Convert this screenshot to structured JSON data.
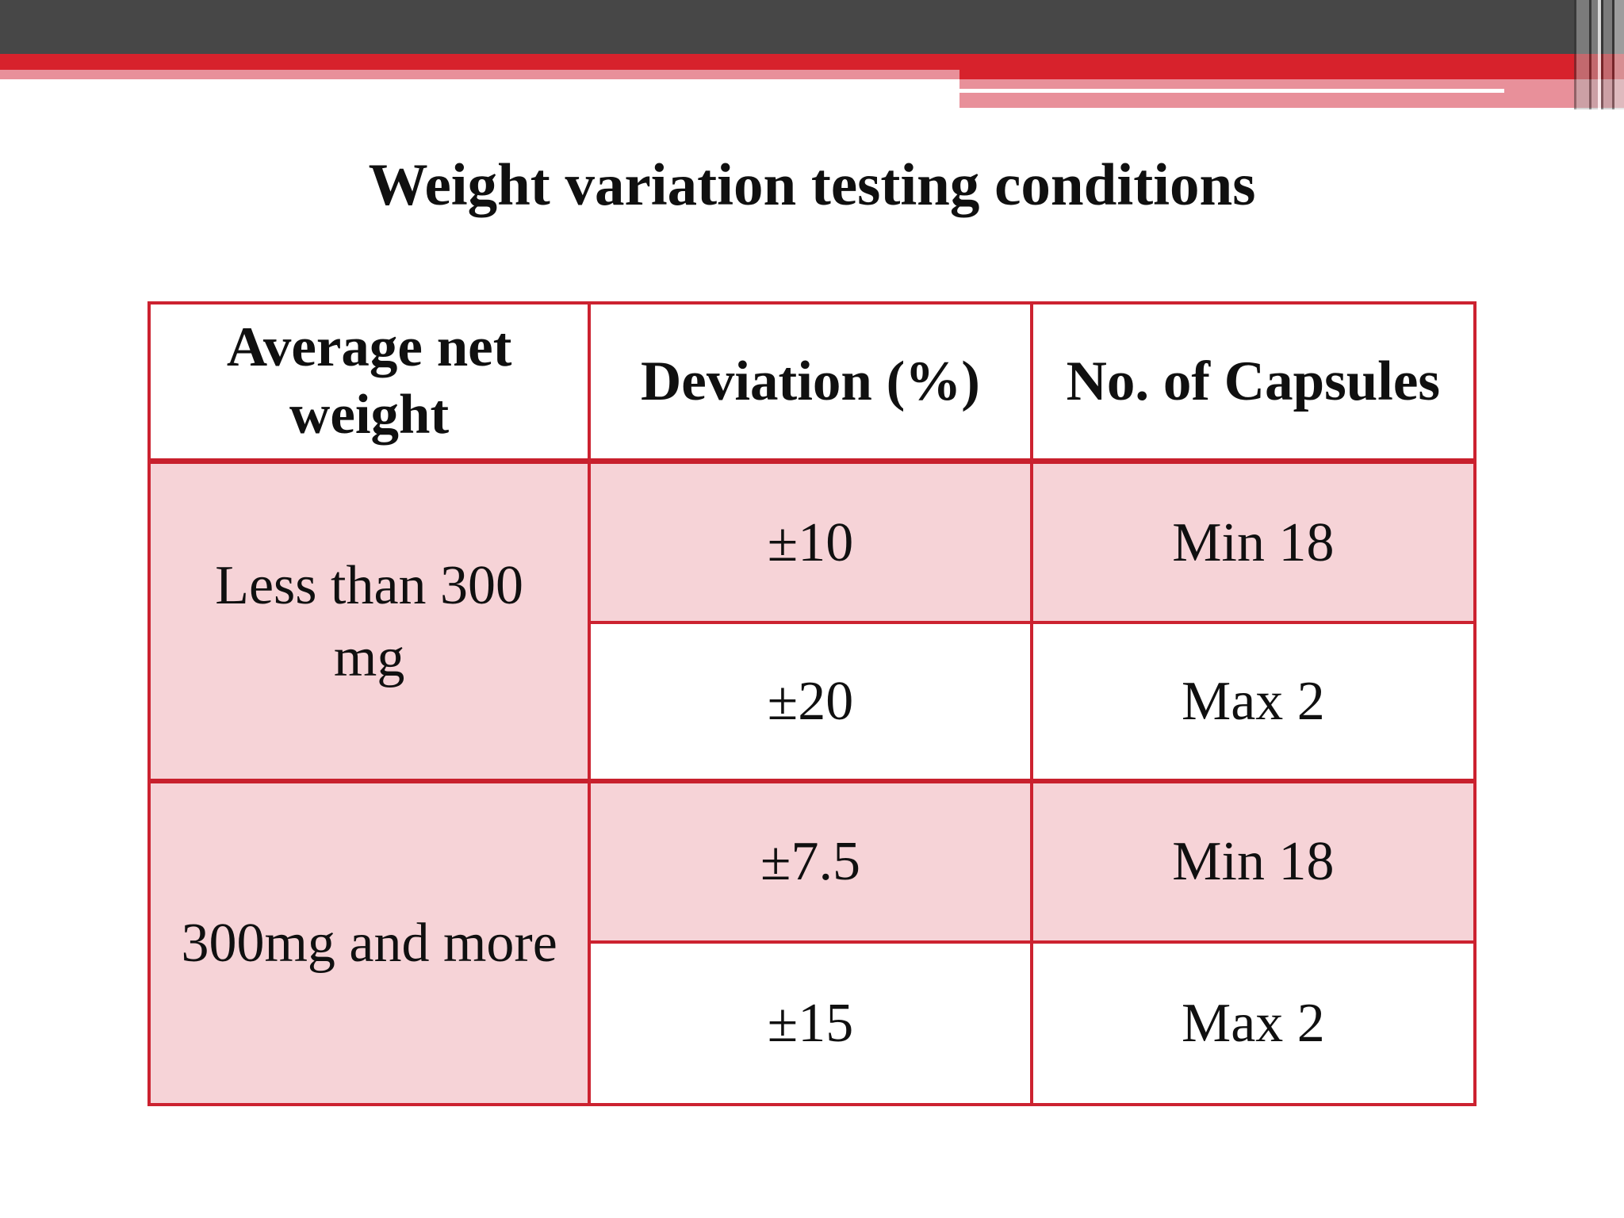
{
  "title": "Weight variation testing conditions",
  "colors": {
    "banner_dark_gray": "#474747",
    "banner_red": "#d7222c",
    "banner_pink": "#e8909a",
    "table_border_red": "#cc2230",
    "shaded_cell_pink": "#f6d3d7",
    "text": "#101010"
  },
  "table": {
    "headers": {
      "col1": "Average net\nweight",
      "col2": "Deviation (%)",
      "col3": "No. of Capsules"
    },
    "groups": [
      {
        "weight_label": "Less than 300\nmg",
        "rows": [
          {
            "deviation": "±10",
            "capsules": "Min 18"
          },
          {
            "deviation": "±20",
            "capsules": "Max 2"
          }
        ]
      },
      {
        "weight_label": "300mg and more",
        "rows": [
          {
            "deviation": "±7.5",
            "capsules": "Min 18"
          },
          {
            "deviation": "±15",
            "capsules": "Max 2"
          }
        ]
      }
    ]
  }
}
